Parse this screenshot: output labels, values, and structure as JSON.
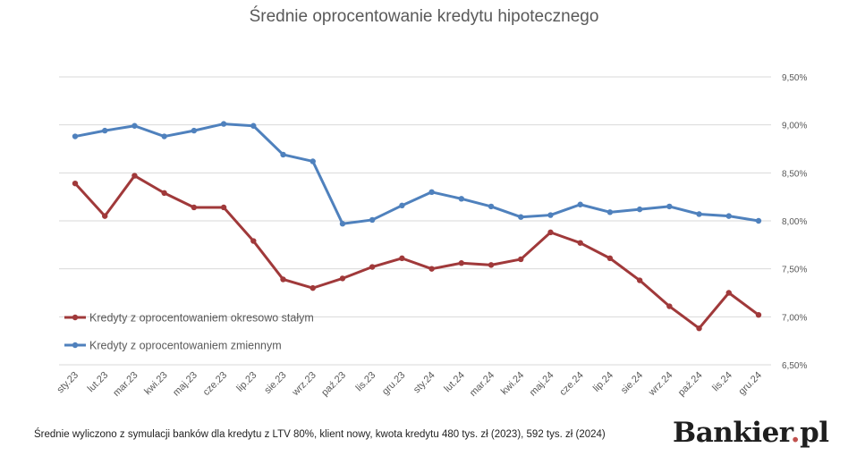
{
  "colors": {
    "fixed": "#A0393A",
    "variable": "#4F81BD",
    "grid": "#D9D9D9",
    "text": "#595959",
    "brand_dot": "#C0504D"
  },
  "chart_data": {
    "type": "line",
    "title": "Średnie oprocentowanie kredytu hipotecznego",
    "categories": [
      "sty.23",
      "lut.23",
      "mar.23",
      "kwi.23",
      "maj.23",
      "cze.23",
      "lip.23",
      "sie.23",
      "wrz.23",
      "paź.23",
      "lis.23",
      "gru.23",
      "sty.24",
      "lut.24",
      "mar.24",
      "kwi.24",
      "maj.24",
      "cze.24",
      "lip.24",
      "sie.24",
      "wrz.24",
      "paź.24",
      "lis.24",
      "gru.24"
    ],
    "series": [
      {
        "name": "Kredyty z oprocentowaniem okresowo stałym",
        "values": [
          8.39,
          8.05,
          8.47,
          8.29,
          8.14,
          8.14,
          7.79,
          7.39,
          7.3,
          7.4,
          7.52,
          7.61,
          7.5,
          7.56,
          7.54,
          7.6,
          7.88,
          7.77,
          7.61,
          7.38,
          7.11,
          6.88,
          7.25,
          7.02
        ]
      },
      {
        "name": "Kredyty z oprocentowaniem zmiennym",
        "values": [
          8.88,
          8.94,
          8.99,
          8.88,
          8.94,
          9.01,
          8.99,
          8.69,
          8.62,
          7.97,
          8.01,
          8.16,
          8.3,
          8.23,
          8.15,
          8.04,
          8.06,
          8.17,
          8.09,
          8.12,
          8.15,
          8.07,
          8.05,
          8.0
        ]
      }
    ],
    "ylim": [
      6.5,
      9.5
    ],
    "yticks": [
      "6,50%",
      "7,00%",
      "7,50%",
      "8,00%",
      "8,50%",
      "9,00%",
      "9,50%"
    ],
    "ytick_values": [
      6.5,
      7.0,
      7.5,
      8.0,
      8.5,
      9.0,
      9.5
    ],
    "y_axis_side": "right",
    "grid": true,
    "legend_position": "bottom-left"
  },
  "footnote": "Średnie wyliczono z symulacji banków dla kredytu z LTV 80%, klient nowy, kwota kredytu 480 tys. zł (2023), 592 tys. zł (2024)",
  "brand": {
    "name": "Bankier",
    "dot": ".",
    "tld": "pl"
  }
}
